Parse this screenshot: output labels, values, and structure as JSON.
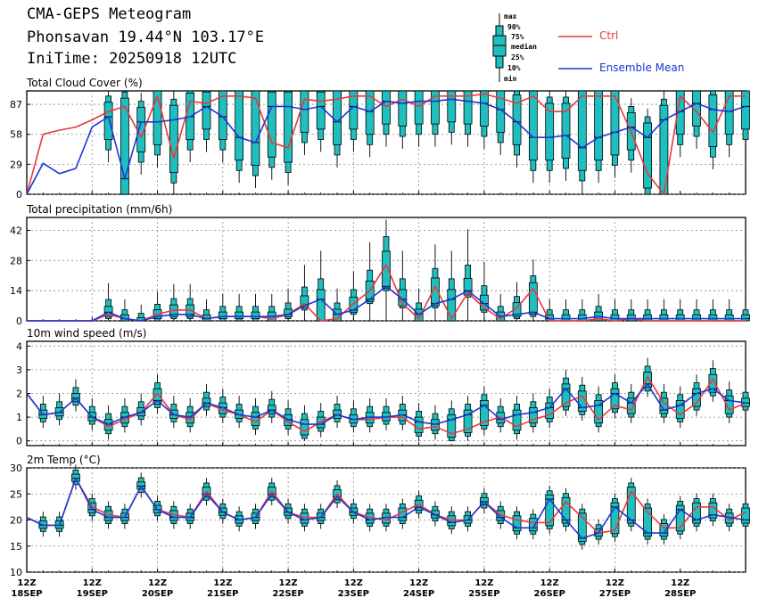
{
  "header": {
    "title": "CMA-GEPS Meteogram",
    "location": "Phonsavan 19.44°N 103.17°E",
    "init_time": "IniTime: 20250918 12UTC"
  },
  "legend": {
    "box_keys": [
      "max",
      "90%",
      "75%",
      "median",
      "25%",
      "10%",
      "min"
    ],
    "ctrl_label": "Ctrl",
    "mean_label": "Ensemble Mean",
    "ctrl_color": "#e8383d",
    "mean_color": "#1a37d8",
    "box_color": "#1fbfbf"
  },
  "x_ticks": [
    {
      "hour": "12Z",
      "date": "18SEP"
    },
    {
      "hour": "12Z",
      "date": "19SEP"
    },
    {
      "hour": "12Z",
      "date": "20SEP"
    },
    {
      "hour": "12Z",
      "date": "21SEP"
    },
    {
      "hour": "12Z",
      "date": "22SEP"
    },
    {
      "hour": "12Z",
      "date": "23SEP"
    },
    {
      "hour": "12Z",
      "date": "24SEP"
    },
    {
      "hour": "12Z",
      "date": "25SEP"
    },
    {
      "hour": "12Z",
      "date": "26SEP"
    },
    {
      "hour": "12Z",
      "date": "27SEP"
    },
    {
      "hour": "12Z",
      "date": "28SEP"
    }
  ],
  "chart_data": [
    {
      "type": "line",
      "title": "Total Cloud Cover (%)",
      "x_unit": "hours since init (6-hourly)",
      "ylim": [
        0,
        100
      ],
      "yticks": [
        0,
        29,
        58,
        87
      ],
      "grid": true,
      "series": [
        {
          "name": "Ctrl",
          "values": [
            0,
            58,
            62,
            65,
            72,
            80,
            85,
            55,
            95,
            35,
            90,
            88,
            95,
            95,
            93,
            50,
            45,
            92,
            90,
            92,
            95,
            95,
            85,
            92,
            85,
            95,
            95,
            95,
            97,
            93,
            88,
            95,
            80,
            80,
            95,
            95,
            95,
            60,
            20,
            0,
            95,
            80,
            60,
            95,
            95
          ]
        },
        {
          "name": "Ensemble Mean",
          "values": [
            0,
            30,
            20,
            25,
            65,
            75,
            15,
            70,
            70,
            72,
            75,
            85,
            75,
            55,
            50,
            85,
            85,
            82,
            85,
            70,
            85,
            80,
            90,
            88,
            90,
            90,
            92,
            90,
            88,
            82,
            70,
            55,
            55,
            57,
            45,
            55,
            60,
            65,
            55,
            72,
            80,
            88,
            82,
            80,
            85
          ]
        }
      ]
    },
    {
      "type": "line",
      "title": "Total precipitation (mm/6h)",
      "x_unit": "hours since init (6-hourly)",
      "ylim": [
        0,
        48
      ],
      "yticks": [
        0,
        14,
        28,
        42
      ],
      "grid": true,
      "series": [
        {
          "name": "Ctrl",
          "values": [
            0,
            0,
            0,
            0,
            0,
            3,
            1,
            0,
            3,
            5,
            5,
            1,
            2,
            2,
            2,
            1,
            3,
            8,
            0,
            1,
            8,
            14,
            26,
            8,
            1,
            16,
            1,
            13,
            6,
            1,
            6,
            15,
            0,
            0,
            0,
            1,
            0,
            1,
            0,
            0,
            0,
            0,
            0,
            0,
            0
          ]
        },
        {
          "name": "Ensemble Mean",
          "values": [
            0,
            0,
            0,
            0,
            0,
            4,
            1,
            0,
            2,
            3,
            3,
            1,
            2,
            2,
            2,
            2,
            3,
            7,
            10,
            3,
            5,
            10,
            16,
            10,
            3,
            8,
            10,
            14,
            8,
            2,
            3,
            4,
            1,
            1,
            1,
            2,
            1,
            1,
            1,
            1,
            1,
            1,
            1,
            1,
            1
          ]
        }
      ]
    },
    {
      "type": "line",
      "title": "10m wind speed (m/s)",
      "x_unit": "hours since init (6-hourly)",
      "ylim": [
        -0.2,
        4.2
      ],
      "yticks": [
        0,
        1,
        2,
        3,
        4
      ],
      "grid": true,
      "series": [
        {
          "name": "Ctrl",
          "values": [
            2,
            1.1,
            1.2,
            1.8,
            1,
            0.6,
            0.9,
            1.2,
            2,
            1.1,
            0.9,
            1.6,
            1.3,
            1.1,
            0.8,
            1.3,
            0.8,
            0.4,
            0.8,
            1.1,
            0.9,
            0.9,
            1,
            1,
            0.5,
            0.6,
            0.3,
            0.5,
            0.8,
            1,
            0.6,
            0.9,
            1.1,
            1.6,
            1.9,
            0.9,
            1.5,
            1.3,
            2.7,
            1.6,
            1.1,
            1.6,
            2.6,
            1.3,
            1.6
          ]
        },
        {
          "name": "Ensemble Mean",
          "values": [
            2,
            1.1,
            1.2,
            1.8,
            1,
            0.7,
            1,
            1.2,
            1.7,
            1.1,
            1,
            1.6,
            1.4,
            1.1,
            1,
            1.3,
            0.9,
            0.7,
            0.7,
            1.1,
            0.9,
            1,
            1,
            1.1,
            0.8,
            0.7,
            0.9,
            1.1,
            1.5,
            0.9,
            1.1,
            1.2,
            1.4,
            2.2,
            1.4,
            1.5,
            2,
            1.6,
            2.4,
            1.3,
            1.5,
            2,
            2.2,
            1.7,
            1.6
          ]
        }
      ]
    },
    {
      "type": "line",
      "title": "2m Temp (°C)",
      "x_unit": "hours since init (6-hourly)",
      "ylim": [
        10,
        30
      ],
      "yticks": [
        10,
        15,
        20,
        25,
        30
      ],
      "grid": true,
      "series": [
        {
          "name": "Ctrl",
          "values": [
            20.5,
            19,
            19,
            28,
            22.5,
            21,
            20.5,
            26.5,
            22,
            21,
            20.5,
            25.5,
            21.5,
            20,
            20.5,
            25.5,
            21.5,
            20.5,
            20.5,
            25,
            21.5,
            20.5,
            20,
            21.5,
            23,
            21,
            20,
            20,
            23.5,
            21,
            20,
            19.5,
            19.5,
            23.5,
            20.5,
            17.5,
            18,
            25.5,
            21.5,
            18.5,
            18.5,
            22.5,
            22.5,
            20,
            21.5
          ]
        },
        {
          "name": "Ensemble Mean",
          "values": [
            20.5,
            19,
            19,
            28,
            22,
            20.5,
            20.5,
            26.5,
            22,
            20.5,
            20.5,
            25,
            21.5,
            20,
            20.5,
            25,
            21.5,
            20,
            20.5,
            24.5,
            21.5,
            20,
            20.5,
            20.5,
            22.5,
            21,
            19.5,
            20,
            23.5,
            20.5,
            18.5,
            18.5,
            24,
            20,
            16.5,
            17.5,
            22.5,
            20,
            17.5,
            17.5,
            22,
            20,
            21,
            20.5,
            20
          ]
        }
      ]
    }
  ]
}
